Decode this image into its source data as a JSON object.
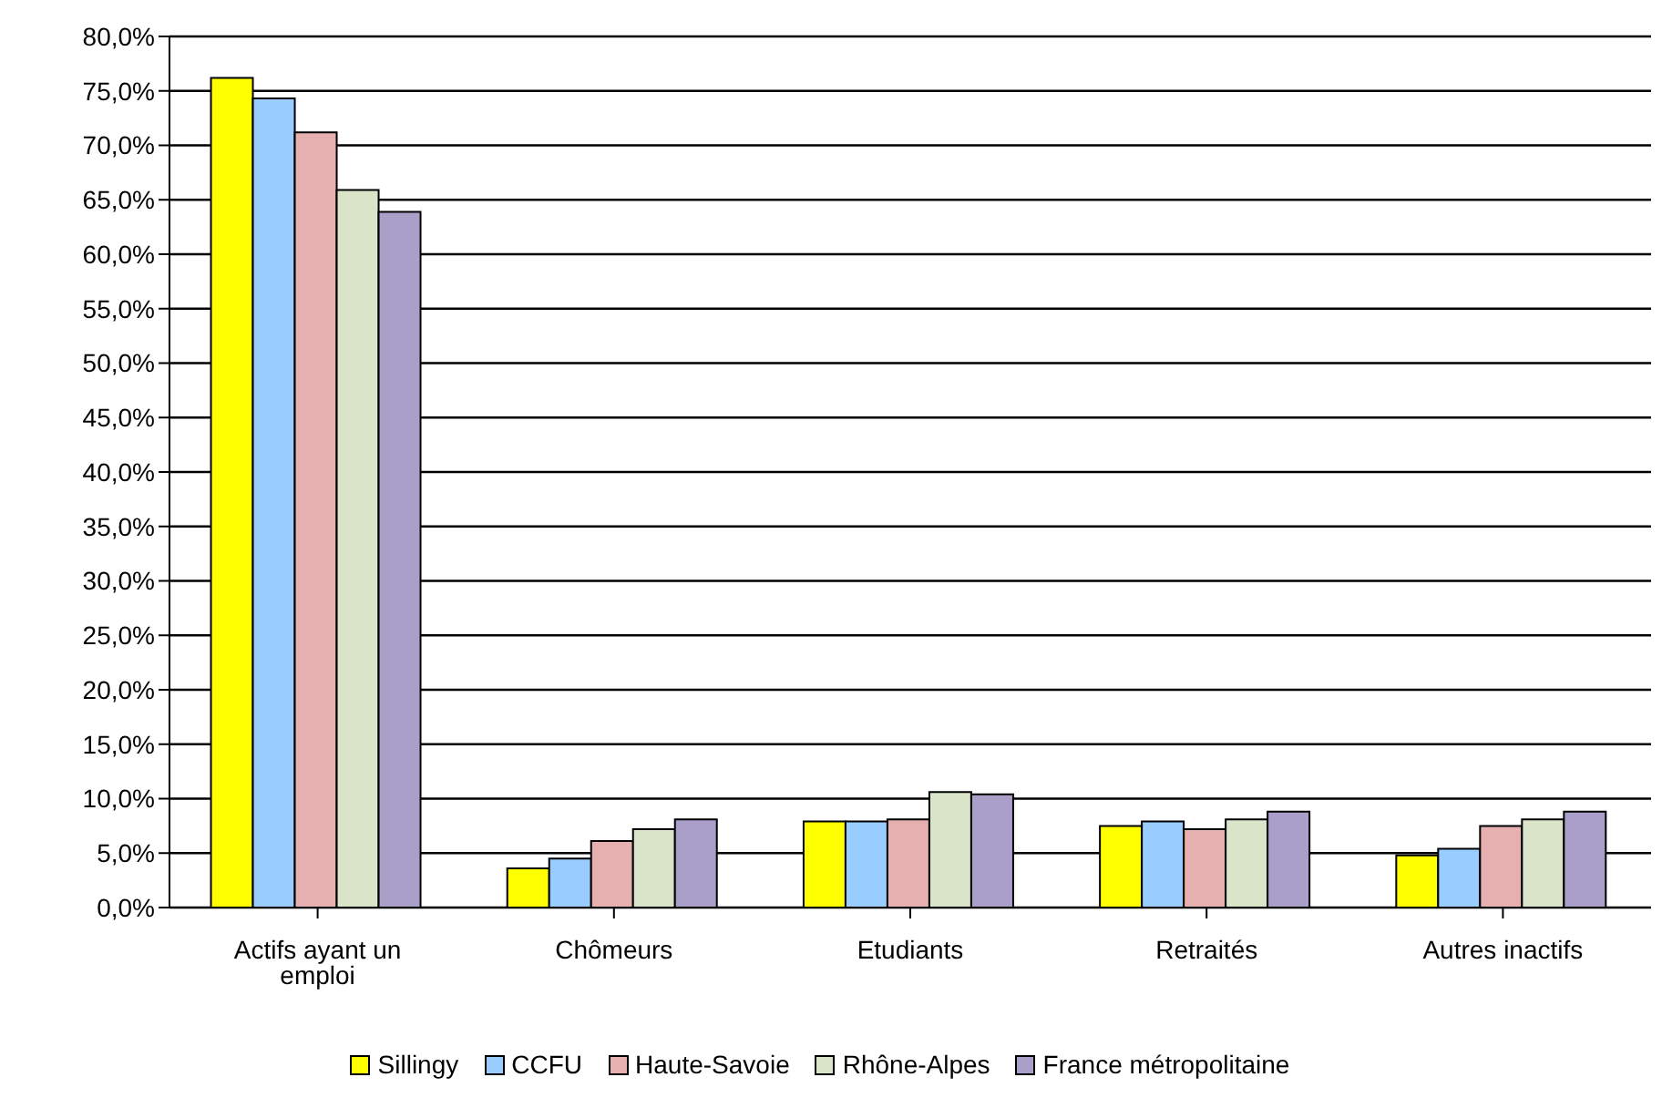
{
  "chart_data": {
    "type": "bar",
    "categories": [
      "Actifs ayant un emploi",
      "Chômeurs",
      "Etudiants",
      "Retraités",
      "Autres inactifs"
    ],
    "series": [
      {
        "name": "Sillingy",
        "color": "#ffff00",
        "values": [
          76.2,
          3.6,
          7.9,
          7.5,
          4.8
        ]
      },
      {
        "name": "CCFU",
        "color": "#99ccff",
        "values": [
          74.3,
          4.5,
          7.9,
          7.9,
          5.4
        ]
      },
      {
        "name": "Haute-Savoie",
        "color": "#e6b0b0",
        "values": [
          71.2,
          6.1,
          8.1,
          7.2,
          7.5
        ]
      },
      {
        "name": "Rhône-Alpes",
        "color": "#d9e4c8",
        "values": [
          65.9,
          7.2,
          10.6,
          8.1,
          8.1
        ]
      },
      {
        "name": "France métropolitaine",
        "color": "#a99fc9",
        "values": [
          63.9,
          8.1,
          10.4,
          8.8,
          8.8
        ]
      }
    ],
    "ylim": [
      0,
      80
    ],
    "yticks": [
      {
        "value": 0,
        "label": "0,0%"
      },
      {
        "value": 5,
        "label": "5,0%"
      },
      {
        "value": 10,
        "label": "10,0%"
      },
      {
        "value": 15,
        "label": "15,0%"
      },
      {
        "value": 20,
        "label": "20,0%"
      },
      {
        "value": 25,
        "label": "25,0%"
      },
      {
        "value": 30,
        "label": "30,0%"
      },
      {
        "value": 35,
        "label": "35,0%"
      },
      {
        "value": 40,
        "label": "40,0%"
      },
      {
        "value": 45,
        "label": "45,0%"
      },
      {
        "value": 50,
        "label": "50,0%"
      },
      {
        "value": 55,
        "label": "55,0%"
      },
      {
        "value": 60,
        "label": "60,0%"
      },
      {
        "value": 65,
        "label": "65,0%"
      },
      {
        "value": 70,
        "label": "70,0%"
      },
      {
        "value": 75,
        "label": "75,0%"
      },
      {
        "value": 80,
        "label": "80,0%"
      }
    ],
    "grid": "y",
    "legend": "bottom"
  }
}
